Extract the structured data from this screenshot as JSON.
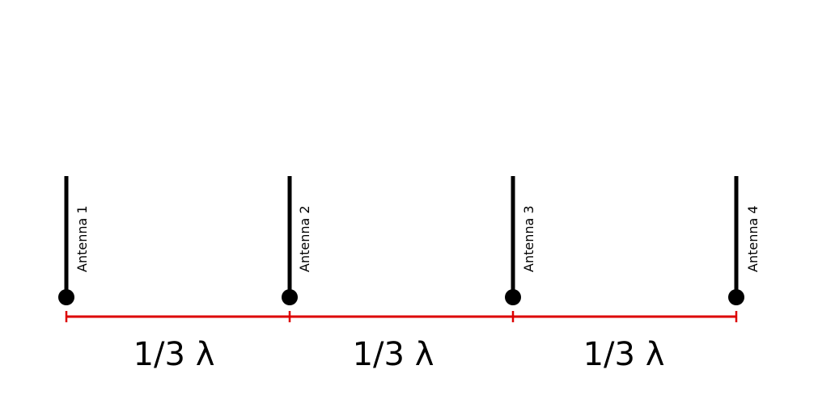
{
  "diagram": {
    "antennas": [
      {
        "label": "Antenna 1"
      },
      {
        "label": "Antenna 2"
      },
      {
        "label": "Antenna 3"
      },
      {
        "label": "Antenna 4"
      }
    ],
    "spacings": [
      {
        "label": "1/3 λ"
      },
      {
        "label": "1/3 λ"
      },
      {
        "label": "1/3 λ"
      }
    ],
    "colors": {
      "antenna": "#000000",
      "dimension_line": "#dd0000",
      "background": "#ffffff"
    }
  }
}
